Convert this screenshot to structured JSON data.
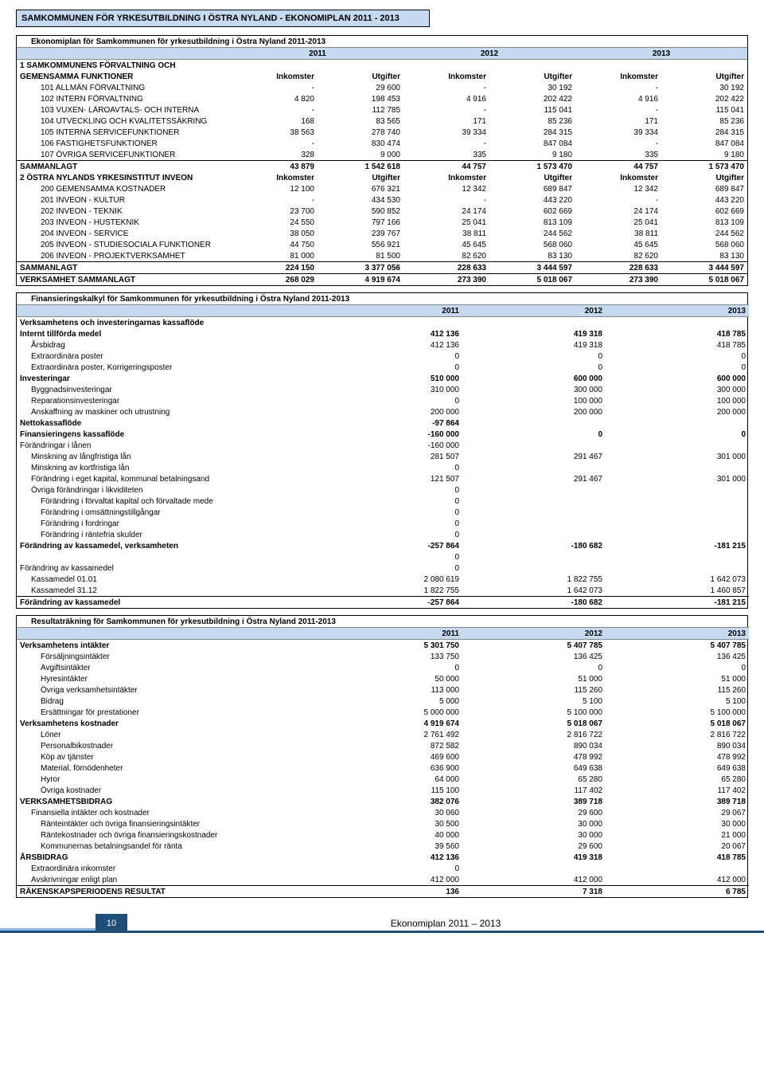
{
  "colors": {
    "banner_bg": "#c5d9f1",
    "border": "#000000",
    "footer_dark": "#1f4e79",
    "footer_light": "#8eb4e3"
  },
  "page_number": "10",
  "footer_text": "Ekonomiplan 2011 – 2013",
  "top_banner": "SAMKOMMUNEN FÖR YRKESUTBILDNING I ÖSTRA NYLAND - EKONOMIPLAN 2011 - 2013",
  "t1": {
    "title": "Ekonomiplan för Samkommunen för yrkesutbildning i Östra Nyland 2011-2013",
    "years": [
      "2011",
      "2012",
      "2013"
    ],
    "sub_headers": [
      "Inkomster",
      "Utgifter",
      "Inkomster",
      "Utgifter",
      "Inkomster",
      "Utgifter"
    ],
    "groups": [
      {
        "header1": "1 SAMKOMMUNENS FÖRVALTNING OCH",
        "header2": "GEMENSAMMA FUNKTIONER",
        "rows": [
          {
            "l": "101 ALLMÄN FÖRVALTNING",
            "v": [
              "-",
              "29 600",
              "-",
              "30 192",
              "-",
              "30 192"
            ]
          },
          {
            "l": "102 INTERN FÖRVALTNING",
            "v": [
              "4 820",
              "198 453",
              "4 916",
              "202 422",
              "4 916",
              "202 422"
            ]
          },
          {
            "l": "103 VUXEN- LÄROAVTALS- OCH INTERNA",
            "v": [
              "-",
              "112 785",
              "-",
              "115 041",
              "-",
              "115 041"
            ]
          },
          {
            "l": "104 UTVECKLING OCH KVALITETSSÄKRING",
            "v": [
              "168",
              "83 565",
              "171",
              "85 236",
              "171",
              "85 236"
            ]
          },
          {
            "l": "105 INTERNA SERVICEFUNKTIONER",
            "v": [
              "38 563",
              "278 740",
              "39 334",
              "284 315",
              "39 334",
              "284 315"
            ]
          },
          {
            "l": "106 FASTIGHETSFUNKTIONER",
            "v": [
              "-",
              "830 474",
              "-",
              "847 084",
              "-",
              "847 084"
            ]
          },
          {
            "l": "107 ÖVRIGA SERVICEFUNKTIONER",
            "v": [
              "328",
              "9 000",
              "335",
              "9 180",
              "335",
              "9 180"
            ]
          }
        ],
        "sum_label": "SAMMANLAGT",
        "sum": [
          "43 879",
          "1 542 618",
          "44 757",
          "1 573 470",
          "44 757",
          "1 573 470"
        ]
      },
      {
        "header2": "2 ÖSTRA NYLANDS YRKESINSTITUT INVEON",
        "rows": [
          {
            "l": "200 GEMENSAMMA KOSTNADER",
            "v": [
              "12 100",
              "676 321",
              "12 342",
              "689 847",
              "12 342",
              "689 847"
            ]
          },
          {
            "l": "201 INVEON - KULTUR",
            "v": [
              "-",
              "434 530",
              "-",
              "443 220",
              "-",
              "443 220"
            ]
          },
          {
            "l": "202 INVEON - TEKNIK",
            "v": [
              "23 700",
              "590 852",
              "24 174",
              "602 669",
              "24 174",
              "602 669"
            ]
          },
          {
            "l": "203 INVEON - HUSTEKNIK",
            "v": [
              "24 550",
              "797 166",
              "25 041",
              "813 109",
              "25 041",
              "813 109"
            ]
          },
          {
            "l": "204 INVEON - SERVICE",
            "v": [
              "38 050",
              "239 767",
              "38 811",
              "244 562",
              "38 811",
              "244 562"
            ]
          },
          {
            "l": "205 INVEON - STUDIESOCIALA FUNKTIONER",
            "v": [
              "44 750",
              "556 921",
              "45 645",
              "568 060",
              "45 645",
              "568 060"
            ]
          },
          {
            "l": "206 INVEON - PROJEKTVERKSAMHET",
            "v": [
              "81 000",
              "81 500",
              "82 620",
              "83 130",
              "82 620",
              "83 130"
            ]
          }
        ],
        "sum_label": "SAMMANLAGT",
        "sum": [
          "224 150",
          "3 377 056",
          "228 633",
          "3 444 597",
          "228 633",
          "3 444 597"
        ]
      }
    ],
    "total_label": "VERKSAMHET SAMMANLAGT",
    "total": [
      "268 029",
      "4 919 674",
      "273 390",
      "5 018 067",
      "273 390",
      "5 018 067"
    ]
  },
  "t2": {
    "title": "Finansieringskalkyl för Samkommunen för yrkesutbildning i Östra Nyland 2011-2013",
    "years": [
      "2011",
      "2012",
      "2013"
    ],
    "rows": [
      {
        "l": "Verksamhetens och investeringarnas kassaflöde",
        "b": 1,
        "v": [
          "",
          "",
          ""
        ]
      },
      {
        "l": "Internt tillförda medel",
        "b": 1,
        "v": [
          "412 136",
          "419 318",
          "418 785"
        ]
      },
      {
        "l": "Årsbidrag",
        "p": 1,
        "v": [
          "412 136",
          "419 318",
          "418 785"
        ]
      },
      {
        "l": "Extraordinära poster",
        "p": 1,
        "v": [
          "0",
          "0",
          "0"
        ]
      },
      {
        "l": "Extraordinära poster, Korrigeringsposter",
        "p": 1,
        "v": [
          "0",
          "0",
          "0"
        ]
      },
      {
        "l": "Investeringar",
        "b": 1,
        "v": [
          "510 000",
          "600 000",
          "600 000"
        ]
      },
      {
        "l": "Byggnadsinvesteringar",
        "p": 1,
        "v": [
          "310 000",
          "300 000",
          "300 000"
        ]
      },
      {
        "l": "Reparationsinvesteringar",
        "p": 1,
        "v": [
          "0",
          "100 000",
          "100 000"
        ]
      },
      {
        "l": "Anskaffning av maskiner och utrustning",
        "p": 1,
        "v": [
          "200 000",
          "200 000",
          "200 000"
        ]
      },
      {
        "l": "Nettokassaflöde",
        "b": 1,
        "v": [
          "-97 864",
          "",
          ""
        ]
      },
      {
        "l": "Finansieringens kassaflöde",
        "b": 1,
        "v": [
          "-160 000",
          "0",
          "0"
        ]
      },
      {
        "l": "Förändringar i lånen",
        "v": [
          "-160 000",
          "",
          ""
        ]
      },
      {
        "l": "Minskning av långfristiga lån",
        "p": 1,
        "v": [
          "281 507",
          "291 467",
          "301 000"
        ]
      },
      {
        "l": "Minskning av kortfristiga lån",
        "p": 1,
        "v": [
          "0",
          "",
          ""
        ]
      },
      {
        "l": "Förändring i eget kapital, kommunal betalningsand",
        "p": 1,
        "v": [
          "121 507",
          "291 467",
          "301 000"
        ]
      },
      {
        "l": "Övriga förändringar i likviditeten",
        "p": 1,
        "v": [
          "0",
          "",
          ""
        ]
      },
      {
        "l": "Förändring i förvaltat kapital och förvaltade mede",
        "p": 2,
        "v": [
          "0",
          "",
          ""
        ]
      },
      {
        "l": "Förändring i omsättningstillgångar",
        "p": 2,
        "v": [
          "0",
          "",
          ""
        ]
      },
      {
        "l": "Förändring i fordringar",
        "p": 2,
        "v": [
          "0",
          "",
          ""
        ]
      },
      {
        "l": "Förändring i räntefria skulder",
        "p": 2,
        "v": [
          "0",
          "",
          ""
        ]
      },
      {
        "l": "Förändring av kassamedel, verksamheten",
        "b": 1,
        "v": [
          "-257 864",
          "-180 682",
          "-181 215"
        ]
      },
      {
        "l": "",
        "v": [
          "0",
          "",
          ""
        ]
      },
      {
        "l": "Förändring av kassamedel",
        "v": [
          "0",
          "",
          ""
        ]
      },
      {
        "l": "Kassamedel 01.01",
        "p": 1,
        "v": [
          "2 080 619",
          "1 822 755",
          "1 642 073"
        ]
      },
      {
        "l": "Kassamedel 31.12",
        "p": 1,
        "v": [
          "1 822 755",
          "1 642 073",
          "1 460 857"
        ]
      },
      {
        "l": "Förändring av kassamedel",
        "b": 1,
        "bt": 1,
        "v": [
          "-257 864",
          "-180 682",
          "-181 215"
        ]
      }
    ]
  },
  "t3": {
    "title": "Resultaträkning för Samkommunen för yrkesutbildning i Östra Nyland 2011-2013",
    "years": [
      "2011",
      "2012",
      "2013"
    ],
    "rows": [
      {
        "l": "Verksamhetens intäkter",
        "b": 1,
        "v": [
          "5 301 750",
          "5 407 785",
          "5 407 785"
        ]
      },
      {
        "l": "Försäljningsintäkter",
        "p": 2,
        "v": [
          "133 750",
          "136 425",
          "136 425"
        ]
      },
      {
        "l": "Avgiftsintäkter",
        "p": 2,
        "v": [
          "0",
          "0",
          "0"
        ]
      },
      {
        "l": "Hyresintäkter",
        "p": 2,
        "v": [
          "50 000",
          "51 000",
          "51 000"
        ]
      },
      {
        "l": "Övriga verksamhetsintäkter",
        "p": 2,
        "v": [
          "113 000",
          "115 260",
          "115 260"
        ]
      },
      {
        "l": "Bidrag",
        "p": 2,
        "v": [
          "5 000",
          "5 100",
          "5 100"
        ]
      },
      {
        "l": "Ersättningar för prestationer",
        "p": 2,
        "v": [
          "5 000 000",
          "5 100 000",
          "5 100 000"
        ]
      },
      {
        "l": "Verksamhetens kostnader",
        "b": 1,
        "v": [
          "4 919 674",
          "5 018 067",
          "5 018 067"
        ]
      },
      {
        "l": "Löner",
        "p": 2,
        "v": [
          "2 761 492",
          "2 816 722",
          "2 816 722"
        ]
      },
      {
        "l": "Personalbikostnader",
        "p": 2,
        "v": [
          "872 582",
          "890 034",
          "890 034"
        ]
      },
      {
        "l": "Köp av tjänster",
        "p": 2,
        "v": [
          "469 600",
          "478 992",
          "478 992"
        ]
      },
      {
        "l": "Material, förnödenheter",
        "p": 2,
        "v": [
          "636 900",
          "649 638",
          "649 638"
        ]
      },
      {
        "l": "Hyror",
        "p": 2,
        "v": [
          "64 000",
          "65 280",
          "65 280"
        ]
      },
      {
        "l": "Övriga kostnader",
        "p": 2,
        "v": [
          "115 100",
          "117 402",
          "117 402"
        ]
      },
      {
        "l": "VERKSAMHETSBIDRAG",
        "b": 1,
        "v": [
          "382 076",
          "389 718",
          "389 718"
        ]
      },
      {
        "l": "Finansiella intäkter och kostnader",
        "p": 1,
        "v": [
          "30 060",
          "29 600",
          "29 067"
        ]
      },
      {
        "l": "Ränteintäkter och övriga finansieringsintäkter",
        "p": 2,
        "v": [
          "30 500",
          "30 000",
          "30 000"
        ]
      },
      {
        "l": "Räntekostnader och övriga finansieringskostnader",
        "p": 2,
        "v": [
          "40 000",
          "30 000",
          "21 000"
        ]
      },
      {
        "l": "Kommunernas betalningsandel för ränta",
        "p": 2,
        "v": [
          "39 560",
          "29 600",
          "20 067"
        ]
      },
      {
        "l": "ÅRSBIDRAG",
        "b": 1,
        "v": [
          "412 136",
          "419 318",
          "418 785"
        ]
      },
      {
        "l": "Extraordinära inkomster",
        "p": 1,
        "v": [
          "0",
          "",
          ""
        ]
      },
      {
        "l": "Avskrivningar enligt plan",
        "p": 1,
        "v": [
          "412 000",
          "412 000",
          "412 000"
        ]
      },
      {
        "l": "RÄKENSKAPSPERIODENS RESULTAT",
        "b": 1,
        "bt": 1,
        "v": [
          "136",
          "7 318",
          "6 785"
        ]
      }
    ]
  }
}
